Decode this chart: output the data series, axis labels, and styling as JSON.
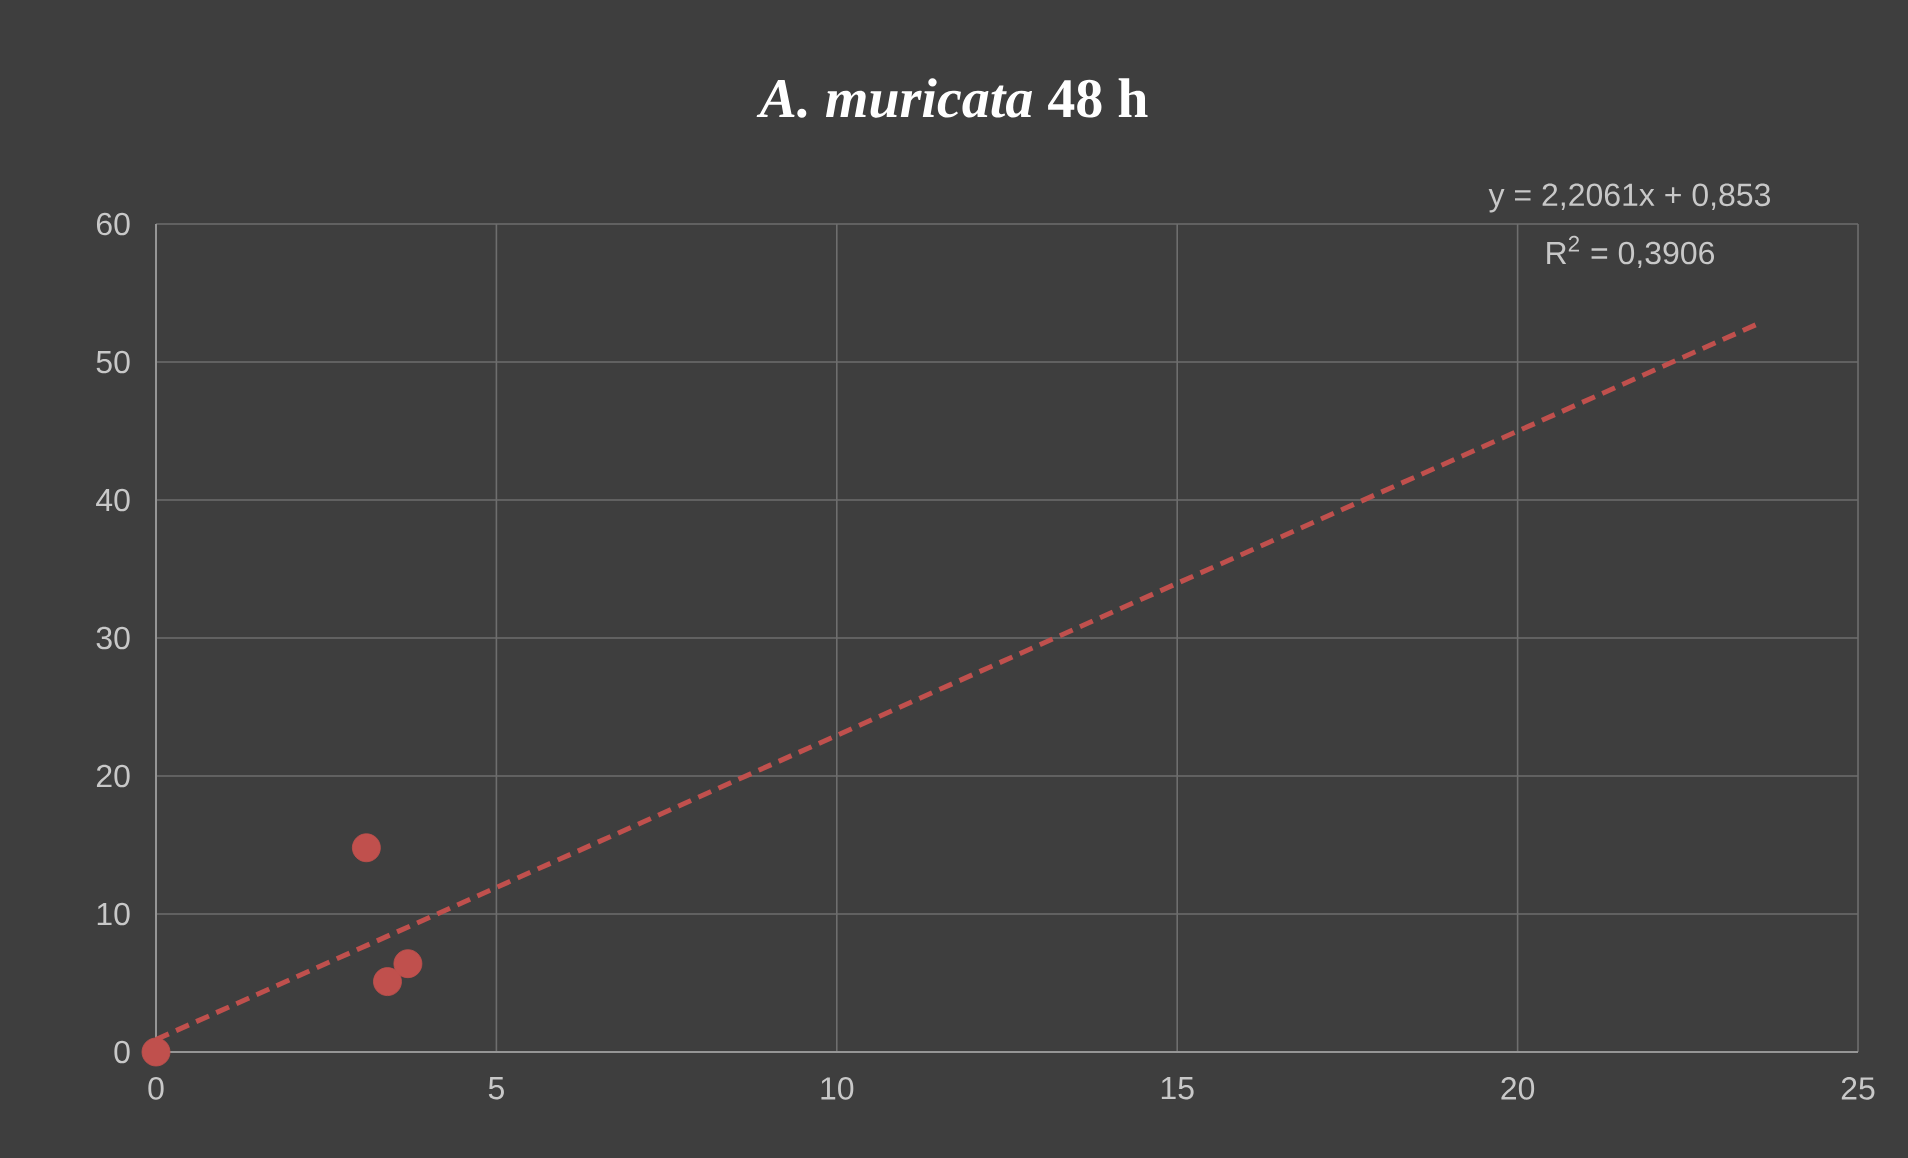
{
  "chart_data": {
    "type": "scatter",
    "title": "*A. muricata* **48 h**",
    "series": [
      {
        "color": "#c0504d",
        "marker": "circle",
        "x": [
          0,
          3.09,
          3.4,
          3.7
        ],
        "values": [
          0,
          14.8,
          5.1,
          6.4
        ]
      },
      {
        "type": "line",
        "color": "#c0504d",
        "line_style": "dashed",
        "marker": "none",
        "x": [
          0,
          23.5
        ],
        "values": [
          0.9,
          52.7
        ]
      }
    ],
    "xlim": [
      0,
      25
    ],
    "ylim": [
      0,
      60
    ],
    "xticks": [
      0,
      5,
      10,
      15,
      20,
      25
    ],
    "yticks": [
      0,
      10,
      20,
      30,
      40,
      50,
      60
    ],
    "grid": true,
    "annotations": [
      "y = 2,2061x + 0,853",
      "R$^{2}$ = 0,3906"
    ]
  }
}
